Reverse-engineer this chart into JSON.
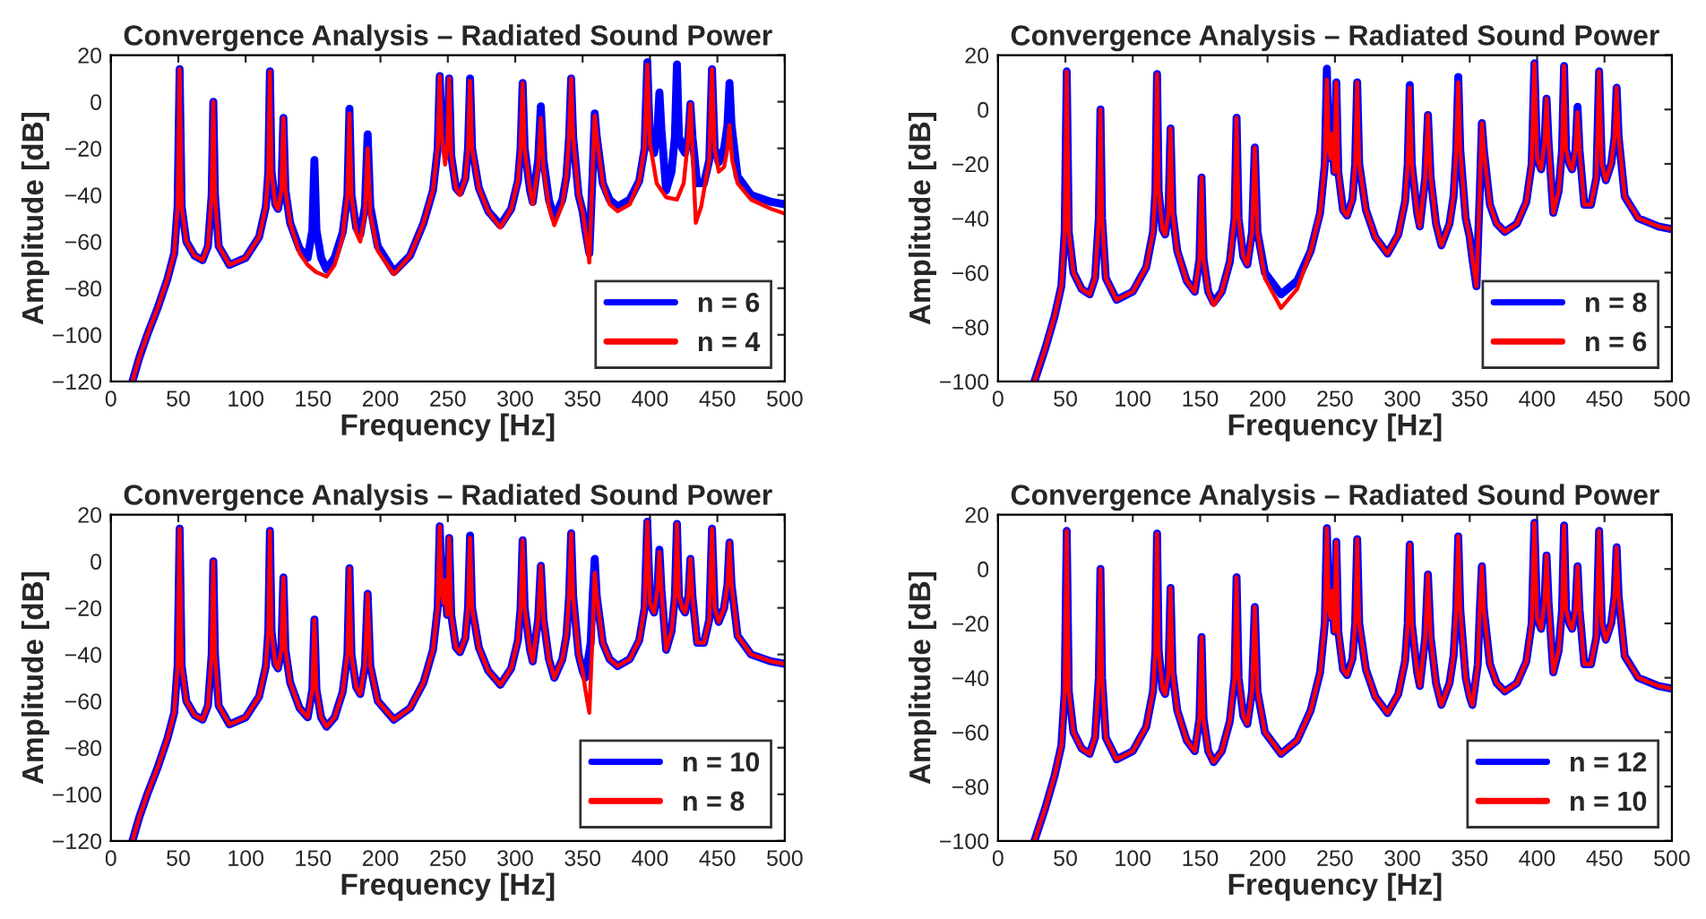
{
  "chart_data": [
    {
      "type": "line",
      "title": "Convergence Analysis – Radiated Sound Power",
      "xlabel": "Frequency [Hz]",
      "ylabel": "Amplitude [dB]",
      "xlim": [
        0,
        500
      ],
      "xticks": [
        0,
        50,
        100,
        150,
        200,
        250,
        300,
        350,
        400,
        450,
        500
      ],
      "ylim": [
        -120,
        20
      ],
      "yticks": [
        -120,
        -100,
        -80,
        -60,
        -40,
        -20,
        0,
        20
      ],
      "grid": false,
      "legend": "bottom right",
      "series": [
        {
          "name": "n = 6",
          "color": "#0000ff",
          "x": [
            16,
            21,
            27,
            35,
            42,
            47,
            49.5,
            51,
            52.5,
            56,
            62,
            68,
            72,
            74.8,
            76,
            77.2,
            80,
            88,
            100,
            110,
            115,
            116.8,
            118,
            119.2,
            122,
            124,
            126.5,
            128,
            129.5,
            133,
            140,
            146,
            149.5,
            151,
            152.5,
            156,
            160,
            166,
            172,
            175.5,
            177,
            178.5,
            182,
            185,
            188.5,
            190.5,
            192.5,
            198,
            210,
            222,
            232,
            239,
            242.5,
            244,
            245.5,
            247,
            248,
            249.5,
            251,
            252.5,
            256,
            259,
            263,
            265,
            266.5,
            268,
            273,
            280,
            289,
            297,
            302,
            304,
            305.5,
            307,
            311,
            313,
            317,
            319,
            321,
            325,
            329,
            335,
            338,
            340,
            341.5,
            343,
            347,
            350,
            352,
            355,
            357.5,
            359,
            360.5,
            365,
            370,
            376,
            385,
            392,
            396,
            398,
            400,
            403,
            405.5,
            407,
            408.5,
            412,
            416,
            418.5,
            420,
            421.5,
            424,
            426,
            428.5,
            430,
            431.5,
            435,
            440,
            444,
            446,
            448,
            451,
            455,
            457.5,
            459,
            460.5,
            465,
            475,
            490,
            500
          ],
          "values": [
            -120,
            -110,
            -100,
            -88,
            -76,
            -65,
            -45,
            14,
            -45,
            -60,
            -66,
            -68,
            -62,
            -40,
            0,
            -40,
            -62,
            -70,
            -67,
            -58,
            -45,
            -30,
            13,
            -30,
            -44,
            -46,
            -38,
            -7,
            -38,
            -52,
            -63,
            -67,
            -55,
            -25,
            -55,
            -67,
            -72,
            -67,
            -56,
            -40,
            -3,
            -40,
            -54,
            -57,
            -45,
            -14,
            -45,
            -62,
            -73,
            -66,
            -52,
            -38,
            -20,
            11,
            -15,
            -18,
            -9,
            -23,
            10,
            -23,
            -37,
            -39,
            -33,
            -20,
            10,
            -20,
            -37,
            -47,
            -53,
            -46,
            -34,
            -20,
            8,
            -20,
            -38,
            -43,
            -25,
            -2,
            -25,
            -42,
            -50,
            -42,
            -32,
            -15,
            10,
            -15,
            -40,
            -47,
            -55,
            -65,
            -30,
            -5,
            -15,
            -35,
            -42,
            -45,
            -42,
            -34,
            -20,
            17,
            -18,
            -22,
            -12,
            4,
            -12,
            -38,
            -30,
            -15,
            16,
            -15,
            -20,
            -22,
            -15,
            -1,
            -15,
            -35,
            -35,
            -25,
            14,
            -20,
            -26,
            -20,
            -10,
            8,
            -10,
            -32,
            -40,
            -43,
            -44
          ]
        },
        {
          "name": "n = 4",
          "color": "#ff0000",
          "x": [
            16,
            21,
            27,
            35,
            42,
            47,
            49.5,
            51,
            52.5,
            56,
            62,
            68,
            72,
            74.8,
            76,
            77.2,
            80,
            88,
            100,
            110,
            115,
            116.8,
            118,
            119.2,
            122,
            124,
            126.5,
            128,
            129.5,
            133,
            140,
            146,
            152,
            160,
            166,
            172,
            175.5,
            177,
            178.5,
            182,
            185,
            188.5,
            190.5,
            192.5,
            198,
            210,
            222,
            232,
            239,
            242.5,
            244,
            245.5,
            248,
            249.5,
            251,
            252.5,
            256,
            259,
            263,
            265,
            266.5,
            268,
            273,
            280,
            289,
            297,
            302,
            304,
            305.5,
            307,
            311,
            313,
            317,
            319,
            321,
            325,
            329,
            335,
            338,
            340,
            341.5,
            343,
            347,
            350,
            352,
            355,
            357.5,
            359,
            360.5,
            365,
            370,
            376,
            385,
            392,
            396,
            398,
            400,
            405,
            412,
            420,
            425,
            428.5,
            430,
            431.5,
            434,
            438,
            444,
            446,
            448,
            451,
            455,
            457.5,
            459,
            461,
            465,
            475,
            490,
            500
          ],
          "values": [
            -120,
            -110,
            -100,
            -88,
            -76,
            -65,
            -45,
            14,
            -45,
            -60,
            -66,
            -68,
            -62,
            -40,
            0,
            -40,
            -62,
            -70,
            -67,
            -58,
            -45,
            -30,
            13,
            -30,
            -44,
            -46,
            -38,
            -7,
            -38,
            -52,
            -65,
            -70,
            -73,
            -75,
            -70,
            -58,
            -40,
            -5,
            -40,
            -56,
            -60,
            -48,
            -20,
            -48,
            -64,
            -74,
            -66,
            -52,
            -38,
            -20,
            11,
            -15,
            -27,
            -20,
            10,
            -23,
            -37,
            -40,
            -33,
            -20,
            9,
            -20,
            -37,
            -47,
            -54,
            -46,
            -34,
            -20,
            8,
            -20,
            -38,
            -44,
            -28,
            -7,
            -28,
            -45,
            -53,
            -44,
            -32,
            -15,
            10,
            -15,
            -40,
            -47,
            -55,
            -69,
            -30,
            -6,
            -15,
            -35,
            -44,
            -47,
            -44,
            -34,
            -20,
            16,
            -18,
            -35,
            -41,
            -42,
            -35,
            -15,
            -1,
            -20,
            -52,
            -45,
            -25,
            14,
            -20,
            -30,
            -28,
            -20,
            -10,
            -25,
            -35,
            -42,
            -46,
            -48
          ]
        }
      ]
    },
    {
      "type": "line",
      "title": "Convergence Analysis – Radiated Sound Power",
      "xlabel": "Frequency [Hz]",
      "ylabel": "Amplitude [dB]",
      "xlim": [
        0,
        500
      ],
      "xticks": [
        0,
        50,
        100,
        150,
        200,
        250,
        300,
        350,
        400,
        450,
        500
      ],
      "ylim": [
        -100,
        20
      ],
      "yticks": [
        -100,
        -80,
        -60,
        -40,
        -20,
        0,
        20
      ],
      "grid": false,
      "legend": "bottom right",
      "series": [
        {
          "name": "n = 8",
          "color": "#0000ff",
          "x": [
            27,
            35,
            42,
            47,
            49.5,
            51,
            52.5,
            56,
            62,
            68,
            72,
            74.8,
            76,
            77.2,
            80,
            88,
            100,
            110,
            115,
            116.8,
            118,
            119.2,
            122,
            124,
            126.5,
            128,
            129.5,
            133,
            140,
            146,
            149.5,
            151,
            152.5,
            156,
            160,
            166,
            172,
            175.5,
            177,
            178.5,
            182,
            185,
            188.5,
            190.5,
            192.5,
            198,
            210,
            222,
            232,
            239,
            242.5,
            244,
            245.5,
            247,
            248,
            249.5,
            251,
            252.5,
            256,
            259,
            263,
            265,
            266.5,
            268,
            273,
            280,
            289,
            297,
            302,
            304,
            305.5,
            307,
            311,
            313,
            317,
            319,
            321,
            325,
            329,
            335,
            338,
            340,
            341.5,
            343,
            347,
            350,
            352,
            355,
            357.5,
            359,
            360.5,
            365,
            370,
            376,
            385,
            392,
            396,
            398,
            400,
            403,
            405.5,
            407,
            408.5,
            412,
            416,
            418.5,
            420,
            421.5,
            424,
            426,
            428.5,
            430,
            431.5,
            435,
            440,
            444,
            446,
            448,
            451,
            455,
            457.5,
            459,
            460.5,
            465,
            475,
            490,
            500
          ],
          "values": [
            -100,
            -88,
            -76,
            -65,
            -45,
            14,
            -45,
            -60,
            -66,
            -68,
            -62,
            -40,
            0,
            -40,
            -62,
            -70,
            -67,
            -58,
            -45,
            -30,
            13,
            -30,
            -44,
            -46,
            -38,
            -7,
            -38,
            -52,
            -63,
            -67,
            -55,
            -25,
            -55,
            -67,
            -71,
            -67,
            -56,
            -40,
            -3,
            -40,
            -54,
            -57,
            -45,
            -14,
            -45,
            -60,
            -68,
            -63,
            -52,
            -38,
            -20,
            15,
            -15,
            -18,
            -8,
            -23,
            10,
            -23,
            -37,
            -39,
            -33,
            -20,
            10,
            -20,
            -37,
            -47,
            -53,
            -46,
            -34,
            -20,
            9,
            -20,
            -38,
            -43,
            -25,
            -2,
            -25,
            -42,
            -50,
            -42,
            -32,
            -15,
            12,
            -15,
            -40,
            -47,
            -55,
            -65,
            -30,
            -5,
            -15,
            -35,
            -42,
            -45,
            -42,
            -34,
            -20,
            17,
            -18,
            -22,
            -12,
            4,
            -12,
            -38,
            -30,
            -15,
            16,
            -15,
            -20,
            -22,
            -15,
            1,
            -15,
            -35,
            -35,
            -25,
            14,
            -20,
            -26,
            -20,
            -10,
            8,
            -10,
            -32,
            -40,
            -43,
            -44
          ]
        },
        {
          "name": "n = 6",
          "color": "#ff0000",
          "x": [
            27,
            35,
            42,
            47,
            49.5,
            51,
            52.5,
            56,
            62,
            68,
            72,
            74.8,
            76,
            77.2,
            80,
            88,
            100,
            110,
            115,
            116.8,
            118,
            119.2,
            122,
            124,
            126.5,
            128,
            129.5,
            133,
            140,
            146,
            149.5,
            151,
            152.5,
            156,
            160,
            166,
            172,
            175.5,
            177,
            178.5,
            182,
            185,
            188.5,
            190.5,
            192.5,
            198,
            210,
            222,
            232,
            239,
            242.5,
            244,
            245.5,
            247,
            248,
            249.5,
            251,
            252.5,
            256,
            259,
            263,
            265,
            266.5,
            268,
            273,
            280,
            289,
            297,
            302,
            304,
            305.5,
            307,
            311,
            313,
            317,
            319,
            321,
            325,
            329,
            335,
            338,
            340,
            341.5,
            343,
            347,
            350,
            352,
            355,
            357.5,
            359,
            360.5,
            365,
            370,
            376,
            385,
            392,
            396,
            398,
            400,
            403,
            405.5,
            407,
            408.5,
            412,
            416,
            418.5,
            420,
            421.5,
            424,
            426,
            428.5,
            430,
            431.5,
            435,
            440,
            444,
            446,
            448,
            451,
            455,
            457.5,
            459,
            460.5,
            465,
            475,
            490,
            500
          ],
          "values": [
            -100,
            -88,
            -76,
            -65,
            -45,
            14,
            -45,
            -60,
            -66,
            -68,
            -62,
            -40,
            0,
            -40,
            -62,
            -70,
            -67,
            -58,
            -45,
            -30,
            13,
            -30,
            -44,
            -46,
            -38,
            -7,
            -38,
            -52,
            -63,
            -67,
            -55,
            -25,
            -55,
            -67,
            -72,
            -67,
            -56,
            -40,
            -3,
            -40,
            -54,
            -57,
            -45,
            -14,
            -45,
            -62,
            -73,
            -66,
            -52,
            -38,
            -20,
            11,
            -15,
            -18,
            -9,
            -23,
            10,
            -23,
            -37,
            -39,
            -33,
            -20,
            10,
            -20,
            -37,
            -47,
            -53,
            -46,
            -34,
            -20,
            8,
            -20,
            -38,
            -43,
            -25,
            -2,
            -25,
            -42,
            -50,
            -42,
            -32,
            -15,
            10,
            -15,
            -40,
            -47,
            -55,
            -65,
            -30,
            -5,
            -15,
            -35,
            -42,
            -45,
            -42,
            -34,
            -20,
            17,
            -18,
            -22,
            -12,
            4,
            -12,
            -38,
            -30,
            -15,
            16,
            -15,
            -20,
            -22,
            -15,
            -1,
            -15,
            -35,
            -35,
            -25,
            14,
            -20,
            -26,
            -20,
            -10,
            8,
            -10,
            -32,
            -40,
            -43,
            -44
          ]
        }
      ]
    },
    {
      "type": "line",
      "title": "Convergence Analysis – Radiated Sound Power",
      "xlabel": "Frequency [Hz]",
      "ylabel": "Amplitude [dB]",
      "xlim": [
        0,
        500
      ],
      "xticks": [
        0,
        50,
        100,
        150,
        200,
        250,
        300,
        350,
        400,
        450,
        500
      ],
      "ylim": [
        -120,
        20
      ],
      "yticks": [
        -120,
        -100,
        -80,
        -60,
        -40,
        -20,
        0,
        20
      ],
      "grid": false,
      "legend": "bottom right",
      "series": [
        {
          "name": "n = 10",
          "color": "#0000ff",
          "x": [
            16,
            21,
            27,
            35,
            42,
            47,
            49.5,
            51,
            52.5,
            56,
            62,
            68,
            72,
            74.8,
            76,
            77.2,
            80,
            88,
            100,
            110,
            115,
            116.8,
            118,
            119.2,
            122,
            124,
            126.5,
            128,
            129.5,
            133,
            140,
            146,
            149.5,
            151,
            152.5,
            156,
            160,
            166,
            172,
            175.5,
            177,
            178.5,
            182,
            185,
            188.5,
            190.5,
            192.5,
            198,
            210,
            222,
            232,
            239,
            242.5,
            244,
            245.5,
            247,
            248,
            249.5,
            251,
            252.5,
            256,
            259,
            263,
            265,
            266.5,
            268,
            273,
            280,
            289,
            297,
            302,
            304,
            305.5,
            307,
            311,
            313,
            317,
            319,
            321,
            325,
            329,
            335,
            338,
            340,
            341.5,
            343,
            347,
            350,
            352,
            356,
            357.5,
            359,
            360.5,
            365,
            370,
            376,
            385,
            392,
            396,
            398,
            400,
            403,
            405.5,
            407,
            408.5,
            412,
            416,
            418.5,
            420,
            421.5,
            424,
            426,
            428.5,
            430,
            431.5,
            435,
            440,
            444,
            446,
            448,
            451,
            455,
            457.5,
            459,
            460.5,
            465,
            475,
            490,
            500
          ],
          "values": [
            -120,
            -110,
            -100,
            -88,
            -76,
            -65,
            -45,
            14,
            -45,
            -60,
            -66,
            -68,
            -62,
            -40,
            0,
            -40,
            -62,
            -70,
            -67,
            -58,
            -45,
            -30,
            13,
            -30,
            -44,
            -46,
            -38,
            -7,
            -38,
            -52,
            -63,
            -67,
            -55,
            -25,
            -55,
            -67,
            -71,
            -67,
            -56,
            -40,
            -3,
            -40,
            -54,
            -57,
            -45,
            -14,
            -45,
            -60,
            -68,
            -63,
            -52,
            -38,
            -20,
            15,
            -15,
            -18,
            -8,
            -23,
            10,
            -23,
            -37,
            -39,
            -33,
            -20,
            11,
            -20,
            -37,
            -47,
            -53,
            -46,
            -34,
            -20,
            9,
            -20,
            -38,
            -43,
            -25,
            -2,
            -25,
            -42,
            -50,
            -42,
            -32,
            -15,
            12,
            -15,
            -40,
            -47,
            -50,
            -35,
            -15,
            1,
            -15,
            -35,
            -42,
            -45,
            -42,
            -34,
            -20,
            17,
            -18,
            -22,
            -12,
            5,
            -12,
            -38,
            -30,
            -15,
            16,
            -15,
            -20,
            -22,
            -15,
            1,
            -15,
            -35,
            -35,
            -25,
            14,
            -20,
            -26,
            -20,
            -10,
            8,
            -10,
            -32,
            -40,
            -43,
            -44
          ]
        },
        {
          "name": "n = 8",
          "color": "#ff0000",
          "x": [
            16,
            21,
            27,
            35,
            42,
            47,
            49.5,
            51,
            52.5,
            56,
            62,
            68,
            72,
            74.8,
            76,
            77.2,
            80,
            88,
            100,
            110,
            115,
            116.8,
            118,
            119.2,
            122,
            124,
            126.5,
            128,
            129.5,
            133,
            140,
            146,
            149.5,
            151,
            152.5,
            156,
            160,
            166,
            172,
            175.5,
            177,
            178.5,
            182,
            185,
            188.5,
            190.5,
            192.5,
            198,
            210,
            222,
            232,
            239,
            242.5,
            244,
            245.5,
            247,
            248,
            249.5,
            251,
            252.5,
            256,
            259,
            263,
            265,
            266.5,
            268,
            273,
            280,
            289,
            297,
            302,
            304,
            305.5,
            307,
            311,
            313,
            317,
            319,
            321,
            325,
            329,
            335,
            338,
            340,
            341.5,
            343,
            347,
            350,
            352,
            355,
            357.5,
            359,
            360.5,
            365,
            370,
            376,
            385,
            392,
            396,
            398,
            400,
            403,
            405.5,
            407,
            408.5,
            412,
            416,
            418.5,
            420,
            421.5,
            424,
            426,
            428.5,
            430,
            431.5,
            435,
            440,
            444,
            446,
            448,
            451,
            455,
            457.5,
            459,
            460.5,
            465,
            475,
            490,
            500
          ],
          "values": [
            -120,
            -110,
            -100,
            -88,
            -76,
            -65,
            -45,
            14,
            -45,
            -60,
            -66,
            -68,
            -62,
            -40,
            0,
            -40,
            -62,
            -70,
            -67,
            -58,
            -45,
            -30,
            13,
            -30,
            -44,
            -46,
            -38,
            -7,
            -38,
            -52,
            -63,
            -67,
            -55,
            -25,
            -55,
            -67,
            -71,
            -67,
            -56,
            -40,
            -3,
            -40,
            -54,
            -57,
            -45,
            -14,
            -45,
            -60,
            -68,
            -63,
            -52,
            -38,
            -20,
            15,
            -15,
            -18,
            -8,
            -23,
            10,
            -23,
            -37,
            -39,
            -33,
            -20,
            10,
            -20,
            -37,
            -47,
            -53,
            -46,
            -34,
            -20,
            9,
            -20,
            -38,
            -43,
            -25,
            -2,
            -25,
            -42,
            -50,
            -42,
            -32,
            -15,
            12,
            -15,
            -40,
            -47,
            -55,
            -65,
            -30,
            -5,
            -15,
            -35,
            -42,
            -45,
            -42,
            -34,
            -20,
            17,
            -18,
            -22,
            -12,
            4,
            -12,
            -38,
            -30,
            -15,
            16,
            -15,
            -20,
            -22,
            -15,
            1,
            -15,
            -35,
            -35,
            -25,
            14,
            -20,
            -26,
            -20,
            -10,
            8,
            -10,
            -32,
            -40,
            -43,
            -44
          ]
        }
      ]
    },
    {
      "type": "line",
      "title": "Convergence Analysis – Radiated Sound Power",
      "xlabel": "Frequency [Hz]",
      "ylabel": "Amplitude [dB]",
      "xlim": [
        0,
        500
      ],
      "xticks": [
        0,
        50,
        100,
        150,
        200,
        250,
        300,
        350,
        400,
        450,
        500
      ],
      "ylim": [
        -100,
        20
      ],
      "yticks": [
        -100,
        -80,
        -60,
        -40,
        -20,
        0,
        20
      ],
      "grid": false,
      "legend": "bottom right",
      "series": [
        {
          "name": "n = 12",
          "color": "#0000ff",
          "x": [
            27,
            35,
            42,
            47,
            49.5,
            51,
            52.5,
            56,
            62,
            68,
            72,
            74.8,
            76,
            77.2,
            80,
            88,
            100,
            110,
            115,
            116.8,
            118,
            119.2,
            122,
            124,
            126.5,
            128,
            129.5,
            133,
            140,
            146,
            149.5,
            151,
            152.5,
            156,
            160,
            166,
            172,
            175.5,
            177,
            178.5,
            182,
            185,
            188.5,
            190.5,
            192.5,
            198,
            210,
            222,
            232,
            239,
            242.5,
            244,
            245.5,
            247,
            248,
            249.5,
            251,
            252.5,
            256,
            259,
            263,
            265,
            266.5,
            268,
            273,
            280,
            289,
            297,
            302,
            304,
            305.5,
            307,
            311,
            313,
            317,
            319,
            321,
            325,
            329,
            335,
            338,
            340,
            341.5,
            343,
            347,
            350,
            352,
            356,
            357.5,
            359,
            360.5,
            365,
            370,
            376,
            385,
            392,
            396,
            398,
            400,
            403,
            405.5,
            407,
            408.5,
            412,
            416,
            418.5,
            420,
            421.5,
            424,
            426,
            428.5,
            430,
            431.5,
            435,
            440,
            444,
            446,
            448,
            451,
            455,
            457.5,
            459,
            460.5,
            465,
            475,
            490,
            500
          ],
          "values": [
            -100,
            -88,
            -76,
            -65,
            -45,
            14,
            -45,
            -60,
            -66,
            -68,
            -62,
            -40,
            0,
            -40,
            -62,
            -70,
            -67,
            -58,
            -45,
            -30,
            13,
            -30,
            -44,
            -46,
            -38,
            -7,
            -38,
            -52,
            -63,
            -67,
            -55,
            -25,
            -55,
            -67,
            -71,
            -67,
            -56,
            -40,
            -3,
            -40,
            -54,
            -57,
            -45,
            -14,
            -45,
            -60,
            -68,
            -63,
            -52,
            -38,
            -20,
            15,
            -15,
            -18,
            -8,
            -23,
            10,
            -23,
            -37,
            -39,
            -33,
            -20,
            11,
            -20,
            -37,
            -47,
            -53,
            -46,
            -34,
            -20,
            9,
            -20,
            -38,
            -43,
            -25,
            -2,
            -25,
            -42,
            -50,
            -42,
            -32,
            -15,
            12,
            -15,
            -40,
            -47,
            -50,
            -35,
            -15,
            1,
            -15,
            -35,
            -42,
            -45,
            -42,
            -34,
            -20,
            17,
            -18,
            -22,
            -12,
            5,
            -12,
            -38,
            -30,
            -15,
            16,
            -15,
            -20,
            -22,
            -15,
            1,
            -15,
            -35,
            -35,
            -25,
            14,
            -20,
            -26,
            -20,
            -10,
            8,
            -10,
            -32,
            -40,
            -43,
            -44
          ]
        },
        {
          "name": "n = 10",
          "color": "#ff0000",
          "x": [
            27,
            35,
            42,
            47,
            49.5,
            51,
            52.5,
            56,
            62,
            68,
            72,
            74.8,
            76,
            77.2,
            80,
            88,
            100,
            110,
            115,
            116.8,
            118,
            119.2,
            122,
            124,
            126.5,
            128,
            129.5,
            133,
            140,
            146,
            149.5,
            151,
            152.5,
            156,
            160,
            166,
            172,
            175.5,
            177,
            178.5,
            182,
            185,
            188.5,
            190.5,
            192.5,
            198,
            210,
            222,
            232,
            239,
            242.5,
            244,
            245.5,
            247,
            248,
            249.5,
            251,
            252.5,
            256,
            259,
            263,
            265,
            266.5,
            268,
            273,
            280,
            289,
            297,
            302,
            304,
            305.5,
            307,
            311,
            313,
            317,
            319,
            321,
            325,
            329,
            335,
            338,
            340,
            341.5,
            343,
            347,
            350,
            352,
            356,
            357.5,
            359,
            360.5,
            365,
            370,
            376,
            385,
            392,
            396,
            398,
            400,
            403,
            405.5,
            407,
            408.5,
            412,
            416,
            418.5,
            420,
            421.5,
            424,
            426,
            428.5,
            430,
            431.5,
            435,
            440,
            444,
            446,
            448,
            451,
            455,
            457.5,
            459,
            460.5,
            465,
            475,
            490,
            500
          ],
          "values": [
            -100,
            -88,
            -76,
            -65,
            -45,
            14,
            -45,
            -60,
            -66,
            -68,
            -62,
            -40,
            0,
            -40,
            -62,
            -70,
            -67,
            -58,
            -45,
            -30,
            13,
            -30,
            -44,
            -46,
            -38,
            -7,
            -38,
            -52,
            -63,
            -67,
            -55,
            -25,
            -55,
            -67,
            -71,
            -67,
            -56,
            -40,
            -3,
            -40,
            -54,
            -57,
            -45,
            -14,
            -45,
            -60,
            -68,
            -63,
            -52,
            -38,
            -20,
            15,
            -15,
            -18,
            -8,
            -23,
            10,
            -23,
            -37,
            -39,
            -33,
            -20,
            11,
            -20,
            -37,
            -47,
            -53,
            -46,
            -34,
            -20,
            9,
            -20,
            -38,
            -43,
            -25,
            -2,
            -25,
            -42,
            -50,
            -42,
            -32,
            -15,
            12,
            -15,
            -40,
            -47,
            -50,
            -35,
            -15,
            1,
            -15,
            -35,
            -42,
            -45,
            -42,
            -34,
            -20,
            17,
            -18,
            -22,
            -12,
            5,
            -12,
            -38,
            -30,
            -15,
            16,
            -15,
            -20,
            -22,
            -15,
            1,
            -15,
            -35,
            -35,
            -25,
            14,
            -20,
            -26,
            -20,
            -10,
            8,
            -10,
            -32,
            -40,
            -43,
            -44
          ]
        }
      ]
    }
  ]
}
